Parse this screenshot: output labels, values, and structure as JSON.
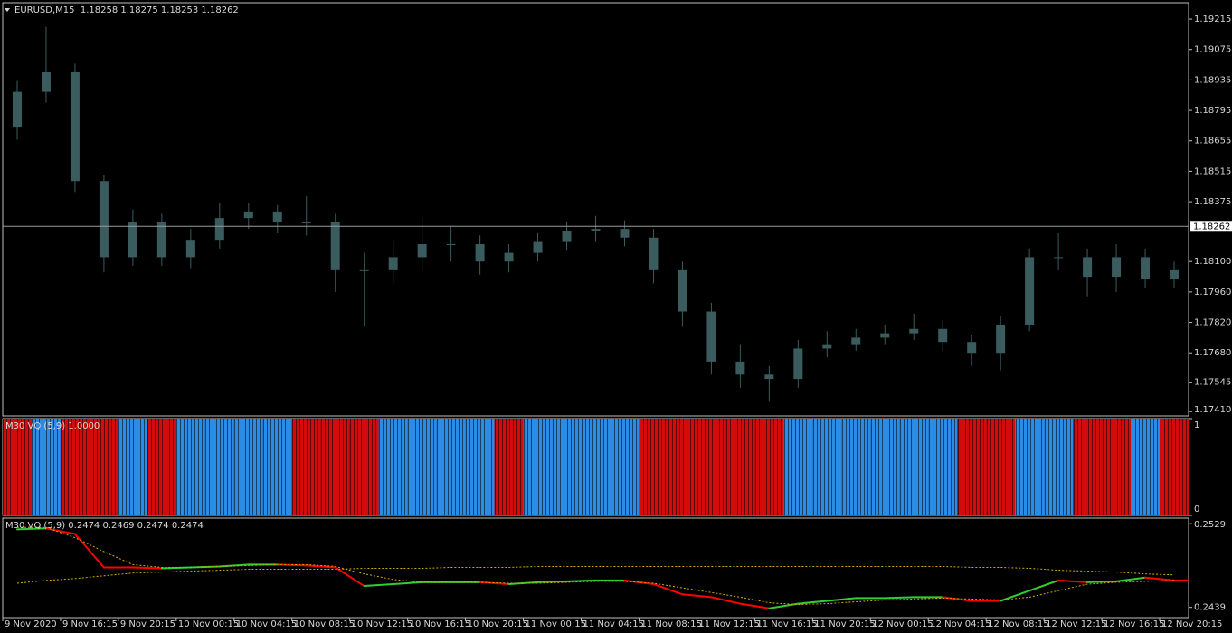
{
  "chart_data": [
    {
      "type": "candlestick",
      "title": "EURUSD,M15  1.18258 1.18275 1.18253 1.18262",
      "color": "#3a5c5e",
      "categories": [
        "9 Nov 2020",
        null,
        "9 Nov 16:15",
        null,
        "9 Nov 20:15",
        null,
        "10 Nov 00:15",
        null,
        "10 Nov 04:15",
        null,
        "10 Nov 08:15",
        null,
        "10 Nov 12:15",
        null,
        "10 Nov 16:15",
        null,
        "10 Nov 20:15",
        null,
        "11 Nov 00:15",
        null,
        "11 Nov 04:15",
        null,
        "11 Nov 08:15",
        null,
        "11 Nov 12:15",
        null,
        "11 Nov 16:15",
        null,
        "11 Nov 20:15",
        null,
        "12 Nov 00:15",
        null,
        "12 Nov 04:15",
        null,
        "12 Nov 08:15",
        null,
        "12 Nov 12:15",
        null,
        "12 Nov 16:15",
        null,
        "12 Nov 20:15"
      ],
      "open": [
        1.1872,
        1.1888,
        1.1897,
        1.1847,
        1.1812,
        1.1828,
        1.1812,
        1.182,
        1.183,
        1.1833,
        1.1828,
        1.1828,
        1.1806,
        1.1806,
        1.1812,
        1.1818,
        1.1818,
        1.181,
        1.1814,
        1.1819,
        1.1824,
        1.1825,
        1.1821,
        1.1806,
        1.1787,
        1.1764,
        1.1758,
        1.1756,
        1.177,
        1.1772,
        1.1775,
        1.1777,
        1.1779,
        1.1773,
        1.1768,
        1.1781,
        1.1812,
        1.1812,
        1.1803,
        1.1812,
        1.1802
      ],
      "high": [
        1.1893,
        1.1918,
        1.1901,
        1.185,
        1.1834,
        1.1832,
        1.1825,
        1.1837,
        1.1837,
        1.1836,
        1.184,
        1.1832,
        1.1814,
        1.182,
        1.183,
        1.1826,
        1.1822,
        1.1818,
        1.1823,
        1.1828,
        1.1831,
        1.1829,
        1.1825,
        1.181,
        1.1791,
        1.1772,
        1.1762,
        1.1774,
        1.1778,
        1.1779,
        1.1781,
        1.1786,
        1.1783,
        1.1776,
        1.1785,
        1.1816,
        1.1823,
        1.1816,
        1.1818,
        1.1816,
        1.181
      ],
      "low": [
        1.1866,
        1.1883,
        1.1842,
        1.1805,
        1.1808,
        1.1808,
        1.1807,
        1.1816,
        1.1825,
        1.1823,
        1.1822,
        1.1796,
        1.178,
        1.18,
        1.1806,
        1.181,
        1.1804,
        1.1805,
        1.181,
        1.1815,
        1.1819,
        1.1817,
        1.18,
        1.178,
        1.1758,
        1.1752,
        1.1746,
        1.1752,
        1.1766,
        1.1769,
        1.1772,
        1.1774,
        1.1769,
        1.1762,
        1.176,
        1.1778,
        1.1806,
        1.1794,
        1.1796,
        1.1798,
        1.1798
      ],
      "close": [
        1.1888,
        1.1897,
        1.1847,
        1.1812,
        1.1828,
        1.1812,
        1.182,
        1.183,
        1.1833,
        1.1828,
        1.1828,
        1.1806,
        1.1806,
        1.1812,
        1.1818,
        1.1818,
        1.181,
        1.1814,
        1.1819,
        1.1824,
        1.1825,
        1.1821,
        1.1806,
        1.1787,
        1.1764,
        1.1758,
        1.1756,
        1.177,
        1.1772,
        1.1775,
        1.1777,
        1.1779,
        1.1773,
        1.1768,
        1.1781,
        1.1812,
        1.1812,
        1.1803,
        1.1812,
        1.1802,
        1.1806
      ],
      "current_price": 1.18262,
      "ylim": [
        1.1739,
        1.1929
      ],
      "yticks": [
        1.19215,
        1.19075,
        1.18935,
        1.18795,
        1.18655,
        1.18515,
        1.18375,
        {
          "value": 1.181,
          "label": "1.18100"
        },
        {
          "value": 1.1796,
          "label": "1.17960"
        },
        {
          "value": 1.1782,
          "label": "1.17820"
        },
        {
          "value": 1.1768,
          "label": "1.17680"
        },
        1.17545,
        {
          "value": 1.1741,
          "label": "1.17410"
        }
      ]
    },
    {
      "type": "bar",
      "title": "M30 VQ (5,9) 1.0000",
      "values": [
        1,
        1,
        1,
        1,
        1,
        1,
        1,
        1,
        1,
        1,
        1,
        1,
        1,
        1,
        1,
        1,
        1,
        1,
        1,
        1,
        1,
        1,
        1,
        1,
        1,
        1,
        1,
        1,
        1,
        1,
        1,
        1,
        1,
        1,
        1,
        1,
        1,
        1,
        1,
        1,
        1
      ],
      "colors": [
        "#d40b0b",
        "#2b8ce6",
        "#d40b0b",
        "#d40b0b",
        "#2b8ce6",
        "#d40b0b",
        "#2b8ce6",
        "#2b8ce6",
        "#2b8ce6",
        "#2b8ce6",
        "#d40b0b",
        "#d40b0b",
        "#d40b0b",
        "#2b8ce6",
        "#2b8ce6",
        "#2b8ce6",
        "#2b8ce6",
        "#d40b0b",
        "#2b8ce6",
        "#2b8ce6",
        "#2b8ce6",
        "#2b8ce6",
        "#d40b0b",
        "#d40b0b",
        "#d40b0b",
        "#d40b0b",
        "#d40b0b",
        "#2b8ce6",
        "#2b8ce6",
        "#2b8ce6",
        "#2b8ce6",
        "#2b8ce6",
        "#2b8ce6",
        "#d40b0b",
        "#d40b0b",
        "#2b8ce6",
        "#2b8ce6",
        "#d40b0b",
        "#d40b0b",
        "#2b8ce6",
        "#d40b0b"
      ],
      "ylim": [
        0,
        1
      ],
      "yticks": [
        1,
        0
      ]
    },
    {
      "type": "line",
      "title": "M30 VQ (5,9) 0.2474 0.2469 0.2474 0.2474",
      "series": [
        {
          "values": [
            0.2523,
            0.2524,
            0.2518,
            0.2482,
            0.2482,
            0.2481,
            0.2482,
            0.2483,
            0.2485,
            0.2485,
            0.2484,
            0.2482,
            0.2462,
            0.2464,
            0.2466,
            0.2466,
            0.2466,
            0.2464,
            0.2466,
            0.2467,
            0.2468,
            0.2468,
            0.2464,
            0.2453,
            0.245,
            0.2443,
            0.2438,
            0.2443,
            0.2446,
            0.2449,
            0.2449,
            0.245,
            0.245,
            0.2446,
            0.2446,
            0.2457,
            0.2468,
            0.2466,
            0.2467,
            0.2471,
            0.2468
          ],
          "colors": [
            "#32cd32",
            "#ff0000",
            "#ff0000",
            "#ff0000",
            "#ff0000",
            "#32cd32",
            "#32cd32",
            "#32cd32",
            "#32cd32",
            "#ff0000",
            "#ff0000",
            "#ff0000",
            "#32cd32",
            "#32cd32",
            "#32cd32",
            "#32cd32",
            "#ff0000",
            "#32cd32",
            "#32cd32",
            "#32cd32",
            "#32cd32",
            "#ff0000",
            "#ff0000",
            "#ff0000",
            "#ff0000",
            "#ff0000",
            "#32cd32",
            "#32cd32",
            "#32cd32",
            "#32cd32",
            "#32cd32",
            "#32cd32",
            "#ff0000",
            "#ff0000",
            "#32cd32",
            "#32cd32",
            "#ff0000",
            "#32cd32",
            "#32cd32",
            "#ff0000",
            "#ff0000"
          ]
        },
        {
          "color": "#d4aa00",
          "dashed": true,
          "values": [
            0.2465,
            0.2468,
            0.247,
            0.2473,
            0.2476,
            0.2477,
            0.2478,
            0.2479,
            0.248,
            0.248,
            0.248,
            0.248,
            0.2481,
            0.2481,
            0.2481,
            0.2482,
            0.2482,
            0.2482,
            0.2483,
            0.2483,
            0.2483,
            0.2483,
            0.2483,
            0.2483,
            0.2483,
            0.2483,
            0.2483,
            0.2483,
            0.2483,
            0.2483,
            0.2483,
            0.2483,
            0.2483,
            0.2482,
            0.2482,
            0.2481,
            0.2479,
            0.2478,
            0.2477,
            0.2475,
            0.2474
          ]
        },
        {
          "color": "#d4aa00",
          "dashed": true,
          "values": [
            0.2525,
            0.2525,
            0.2514,
            0.2499,
            0.2485,
            0.2482,
            0.2482,
            0.2483,
            0.2484,
            0.2485,
            0.2485,
            0.2483,
            0.2475,
            0.2469,
            0.2466,
            0.2466,
            0.2466,
            0.2465,
            0.2465,
            0.2466,
            0.2467,
            0.2467,
            0.2465,
            0.246,
            0.2455,
            0.245,
            0.2444,
            0.2442,
            0.2443,
            0.2445,
            0.2447,
            0.2448,
            0.2449,
            0.2448,
            0.2447,
            0.245,
            0.2457,
            0.2464,
            0.2466,
            0.2467,
            0.2468
          ]
        }
      ],
      "ylim": [
        0.2428,
        0.2535
      ],
      "yticks": [
        0.2529,
        0.2439
      ]
    }
  ]
}
